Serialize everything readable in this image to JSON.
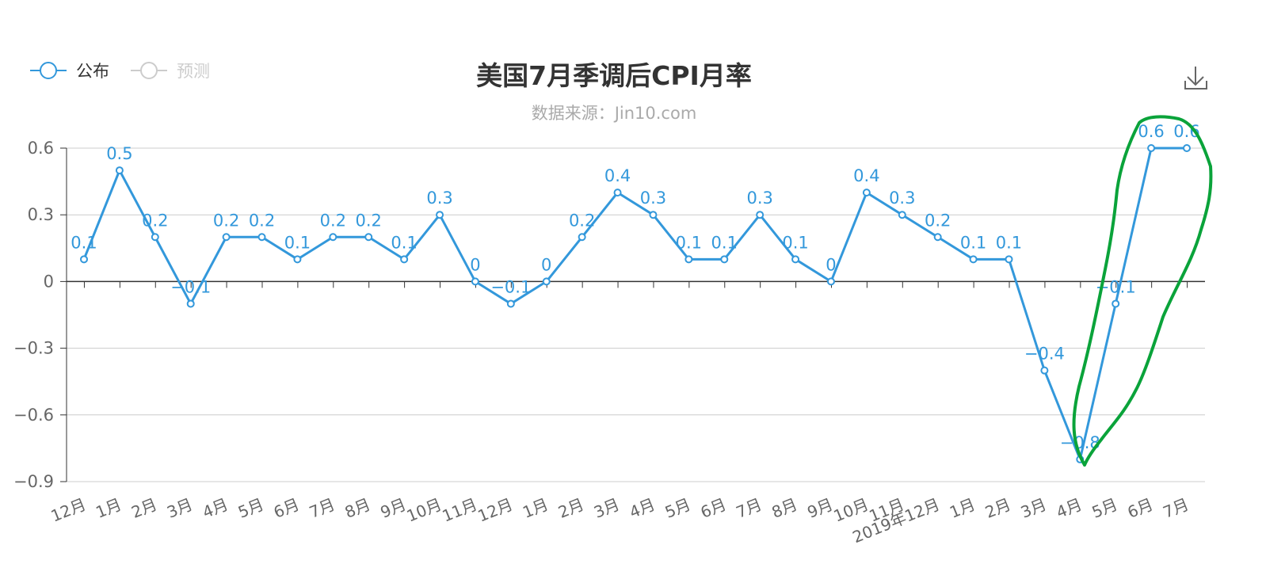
{
  "chart_data": {
    "type": "line",
    "title": "美国7月季调后CPI月率",
    "subtitle": "数据来源：Jin10.com",
    "legend": [
      {
        "name": "公布",
        "color": "#3398DB",
        "active": true
      },
      {
        "name": "预测",
        "color": "#cccccc",
        "active": false
      }
    ],
    "legend_position": "top-left",
    "ylim": [
      -0.9,
      0.6
    ],
    "yticks": [
      0.6,
      0.3,
      0,
      -0.3,
      -0.6,
      -0.9
    ],
    "ytick_labels": [
      "0.6",
      "0.3",
      "0",
      "−0.3",
      "−0.6",
      "−0.9"
    ],
    "grid": true,
    "categories": [
      "12月",
      "1月",
      "2月",
      "3月",
      "4月",
      "5月",
      "6月",
      "7月",
      "8月",
      "9月",
      "10月",
      "11月",
      "12月",
      "1月",
      "2月",
      "3月",
      "4月",
      "5月",
      "6月",
      "7月",
      "8月",
      "9月",
      "10月",
      "11月",
      "2019年12月",
      "1月",
      "2月",
      "3月",
      "4月",
      "5月",
      "6月",
      "7月"
    ],
    "series": [
      {
        "name": "公布",
        "color": "#3398DB",
        "values": [
          0.1,
          0.5,
          0.2,
          -0.1,
          0.2,
          0.2,
          0.1,
          0.2,
          0.2,
          0.1,
          0.3,
          0,
          -0.1,
          0,
          0.2,
          0.4,
          0.3,
          0.1,
          0.1,
          0.3,
          0.1,
          0,
          0.4,
          0.3,
          0.2,
          0.1,
          0.1,
          -0.4,
          -0.8,
          -0.1,
          0.6,
          0.6
        ],
        "labels": [
          "0.1",
          "0.5",
          "0.2",
          "−0.1",
          "0.2",
          "0.2",
          "0.1",
          "0.2",
          "0.2",
          "0.1",
          "0.3",
          "0",
          "−0.1",
          "0",
          "0.2",
          "0.4",
          "0.3",
          "0.1",
          "0.1",
          "0.3",
          "0.1",
          "0",
          "0.4",
          "0.3",
          "0.2",
          "0.1",
          "0.1",
          "−0.4",
          "−0.8",
          "−0.1",
          "0.6",
          "0.6"
        ]
      }
    ],
    "annotation": {
      "type": "hand-drawn-loop",
      "color": "#0aa33a"
    },
    "icons": {
      "download": "download-icon"
    }
  }
}
